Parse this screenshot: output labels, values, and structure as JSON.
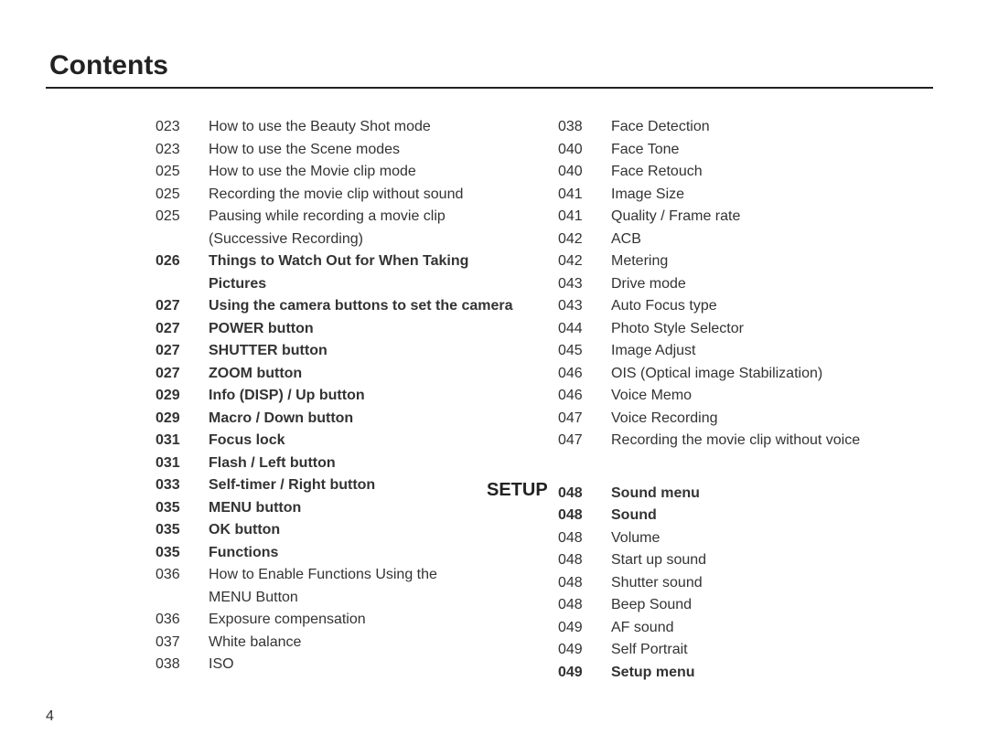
{
  "title": "Contents",
  "pageFooter": "4",
  "section2Label": "SETUP",
  "col1": [
    {
      "p": "023",
      "t": "How to use the Beauty Shot mode",
      "b": false
    },
    {
      "p": "023",
      "t": "How to use the Scene modes",
      "b": false
    },
    {
      "p": "025",
      "t": "How to use the Movie clip mode",
      "b": false
    },
    {
      "p": "025",
      "t": "Recording the movie clip without sound",
      "b": false
    },
    {
      "p": "025",
      "t": "Pausing while recording a movie clip",
      "b": false
    },
    {
      "p": "",
      "t": "(Successive Recording)",
      "b": false,
      "indent": true
    },
    {
      "p": "026",
      "t": "Things to Watch Out for When Taking",
      "b": true
    },
    {
      "p": "",
      "t": "Pictures",
      "b": true,
      "indent": true
    },
    {
      "p": "027",
      "t": "Using the camera buttons to set the camera",
      "b": true
    },
    {
      "p": "027",
      "t": "POWER button",
      "b": true
    },
    {
      "p": "027",
      "t": "SHUTTER button",
      "b": true
    },
    {
      "p": "027",
      "t": "ZOOM button",
      "b": true
    },
    {
      "p": "029",
      "t": "Info (DISP) / Up button",
      "b": true
    },
    {
      "p": "029",
      "t": "Macro / Down button",
      "b": true
    },
    {
      "p": "031",
      "t": "Focus lock",
      "b": true
    },
    {
      "p": "031",
      "t": "Flash / Left button",
      "b": true
    },
    {
      "p": "033",
      "t": "Self-timer / Right button",
      "b": true
    },
    {
      "p": "035",
      "t": "MENU button",
      "b": true
    },
    {
      "p": "035",
      "t": "OK button",
      "b": true
    },
    {
      "p": "035",
      "t": "Functions",
      "b": true
    },
    {
      "p": "036",
      "t": "How to Enable Functions Using the",
      "b": false
    },
    {
      "p": "",
      "t": "MENU Button",
      "b": false,
      "indent": true
    },
    {
      "p": "036",
      "t": "Exposure compensation",
      "b": false
    },
    {
      "p": "037",
      "t": "White balance",
      "b": false
    },
    {
      "p": "038",
      "t": "ISO",
      "b": false
    }
  ],
  "col2a": [
    {
      "p": "038",
      "t": "Face Detection",
      "b": false
    },
    {
      "p": "040",
      "t": "Face Tone",
      "b": false
    },
    {
      "p": "040",
      "t": "Face Retouch",
      "b": false
    },
    {
      "p": "041",
      "t": "Image Size",
      "b": false
    },
    {
      "p": "041",
      "t": "Quality / Frame rate",
      "b": false
    },
    {
      "p": "042",
      "t": "ACB",
      "b": false
    },
    {
      "p": "042",
      "t": "Metering",
      "b": false
    },
    {
      "p": "043",
      "t": "Drive mode",
      "b": false
    },
    {
      "p": "043",
      "t": "Auto Focus type",
      "b": false
    },
    {
      "p": "044",
      "t": "Photo Style Selector",
      "b": false
    },
    {
      "p": "045",
      "t": "Image Adjust",
      "b": false
    },
    {
      "p": "046",
      "t": "OIS (Optical image Stabilization)",
      "b": false
    },
    {
      "p": "046",
      "t": "Voice Memo",
      "b": false
    },
    {
      "p": "047",
      "t": "Voice Recording",
      "b": false
    },
    {
      "p": "047",
      "t": "Recording the movie clip without voice",
      "b": false
    }
  ],
  "col2b": [
    {
      "p": "048",
      "t": "Sound menu",
      "b": true
    },
    {
      "p": "048",
      "t": "Sound",
      "b": true
    },
    {
      "p": "048",
      "t": "Volume",
      "b": false
    },
    {
      "p": "048",
      "t": "Start up sound",
      "b": false
    },
    {
      "p": "048",
      "t": "Shutter sound",
      "b": false
    },
    {
      "p": "048",
      "t": "Beep Sound",
      "b": false
    },
    {
      "p": "049",
      "t": "AF sound",
      "b": false
    },
    {
      "p": "049",
      "t": "Self Portrait",
      "b": false
    },
    {
      "p": "049",
      "t": "Setup menu",
      "b": true
    }
  ]
}
